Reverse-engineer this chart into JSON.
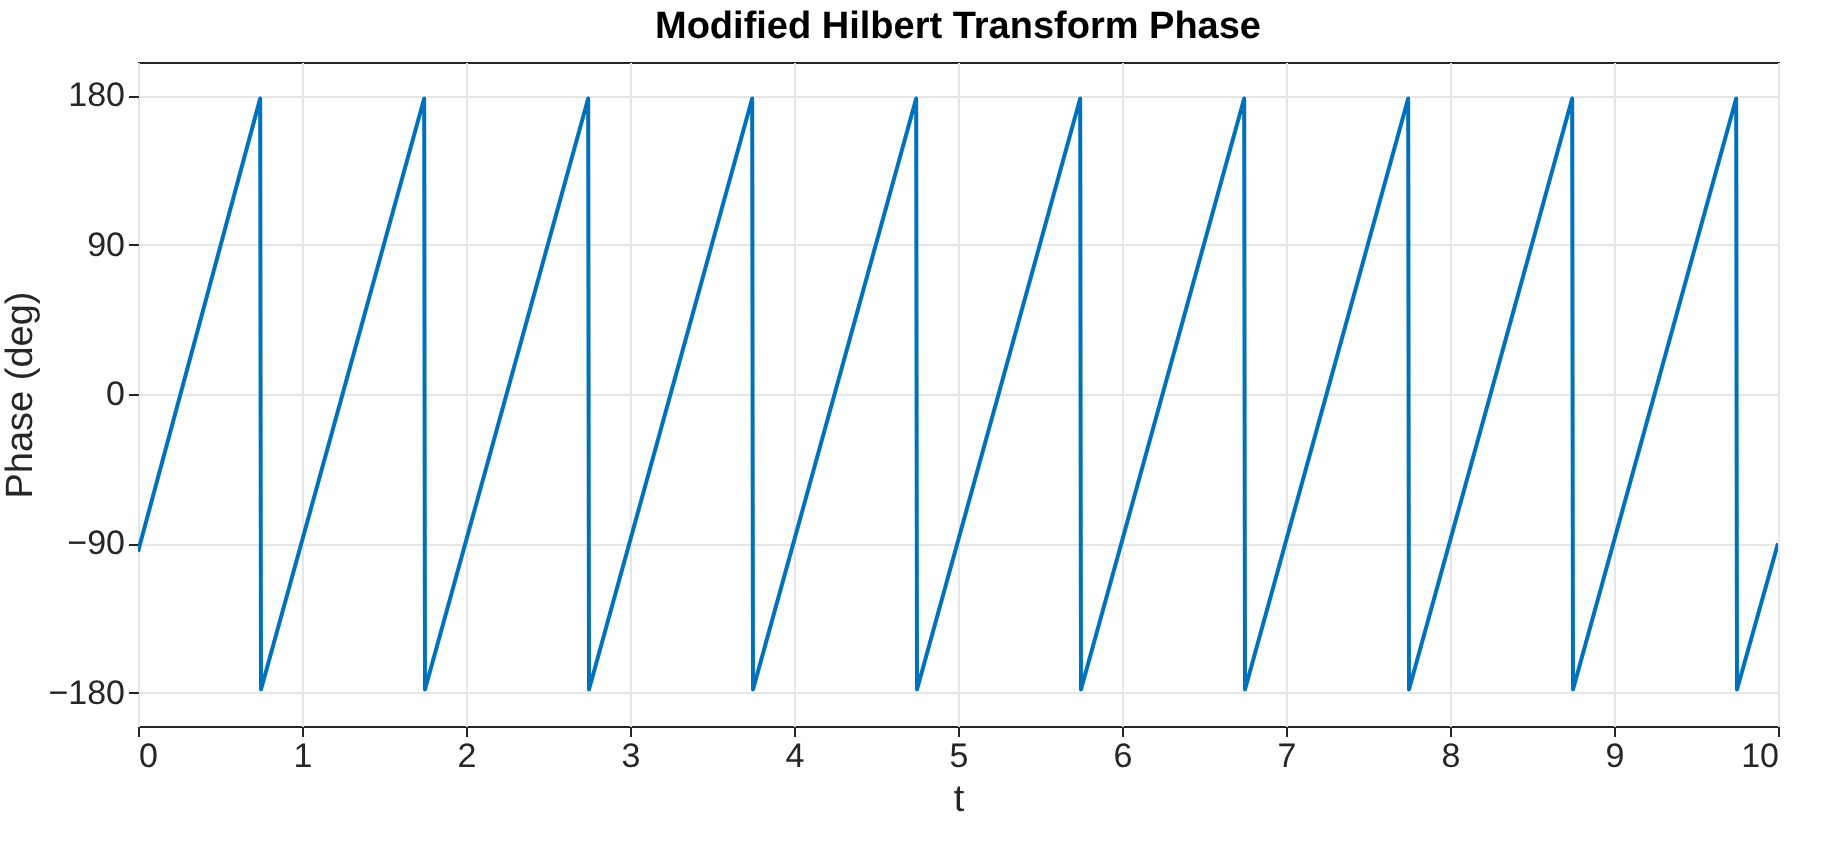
{
  "chart_data": {
    "type": "line",
    "title": "Modified Hilbert Transform Phase",
    "xlabel": "t",
    "ylabel": "Phase (deg)",
    "x": [
      0,
      0.745,
      0.75,
      1.745,
      1.75,
      2.745,
      2.75,
      3.745,
      3.75,
      4.745,
      4.75,
      5.745,
      5.75,
      6.745,
      6.75,
      7.745,
      7.75,
      8.745,
      8.75,
      9.745,
      9.75,
      10
    ],
    "series": [
      {
        "color": "#0072bd",
        "values": [
          -95,
          178,
          -178,
          178,
          -178,
          178,
          -178,
          178,
          -178,
          178,
          -178,
          178,
          -178,
          178,
          -178,
          178,
          -178,
          178,
          -178,
          178,
          -178,
          -90
        ]
      }
    ],
    "xlim": [
      0,
      10
    ],
    "xticks": [
      0,
      1,
      2,
      3,
      4,
      5,
      6,
      7,
      8,
      9,
      10
    ],
    "ylim": [
      -200,
      200
    ],
    "yticks": [
      -180,
      -90,
      0,
      90,
      180
    ],
    "grid": true,
    "line_style": "solid"
  }
}
